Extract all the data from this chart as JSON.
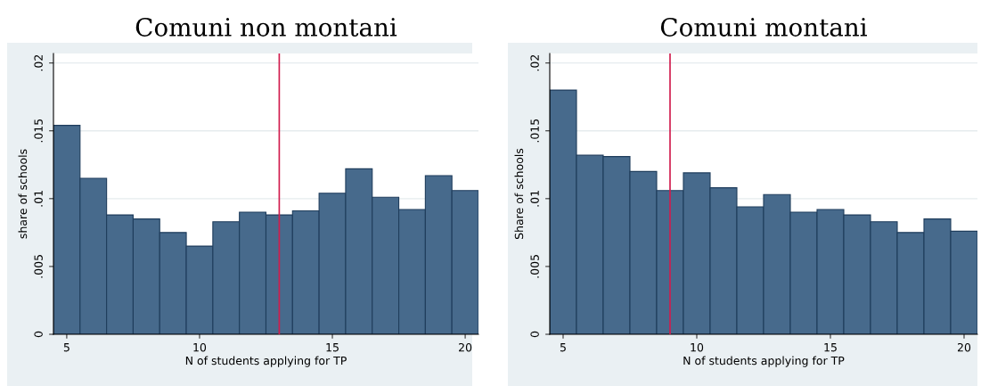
{
  "chart_data": [
    {
      "type": "histogram",
      "title": "Comuni non montani",
      "xlabel": "N of students applying for TP",
      "ylabel": "share of schools",
      "bins": [
        4.5,
        5.5,
        6.5,
        7.5,
        8.5,
        9.5,
        10.5,
        11.5,
        12.5,
        13.5,
        14.5,
        15.5,
        16.5,
        17.5,
        18.5,
        19.5,
        20.5
      ],
      "values": [
        0.0154,
        0.0115,
        0.0088,
        0.0085,
        0.0075,
        0.0065,
        0.0083,
        0.009,
        0.0088,
        0.0091,
        0.0104,
        0.0122,
        0.0101,
        0.0092,
        0.0117,
        0.0106
      ],
      "color": "#476a8c",
      "xlim": [
        4.5,
        20.5
      ],
      "xticks": [
        5,
        10,
        15,
        20
      ],
      "ylim": [
        0,
        0.0207
      ],
      "yticks": [
        0,
        {
          "value": 0.005,
          "label": ".005"
        },
        {
          "value": 0.01,
          "label": ".01"
        },
        {
          "value": 0.015,
          "label": ".015"
        },
        {
          "value": 0.02,
          "label": ".02"
        }
      ],
      "grid": "y",
      "ref_lines": [
        {
          "axis": "x",
          "value": 13,
          "color": "#d11c4e"
        }
      ]
    },
    {
      "type": "histogram",
      "title": "Comuni montani",
      "xlabel": "N of students applying for TP",
      "ylabel": "Share of schools",
      "bins": [
        4.5,
        5.5,
        6.5,
        7.5,
        8.5,
        9.5,
        10.5,
        11.5,
        12.5,
        13.5,
        14.5,
        15.5,
        16.5,
        17.5,
        18.5,
        19.5,
        20.5
      ],
      "values": [
        0.018,
        0.0132,
        0.0131,
        0.012,
        0.0106,
        0.0119,
        0.0108,
        0.0094,
        0.0103,
        0.009,
        0.0092,
        0.0088,
        0.0083,
        0.0075,
        0.0085,
        0.0076
      ],
      "color": "#476a8c",
      "xlim": [
        4.5,
        20.5
      ],
      "xticks": [
        5,
        10,
        15,
        20
      ],
      "ylim": [
        0,
        0.0207
      ],
      "yticks": [
        0,
        {
          "value": 0.005,
          "label": ".005"
        },
        {
          "value": 0.01,
          "label": ".01"
        },
        {
          "value": 0.015,
          "label": ".015"
        },
        {
          "value": 0.02,
          "label": ".02"
        }
      ],
      "grid": "y",
      "ref_lines": [
        {
          "axis": "x",
          "value": 9,
          "color": "#d11c4e"
        }
      ]
    }
  ]
}
